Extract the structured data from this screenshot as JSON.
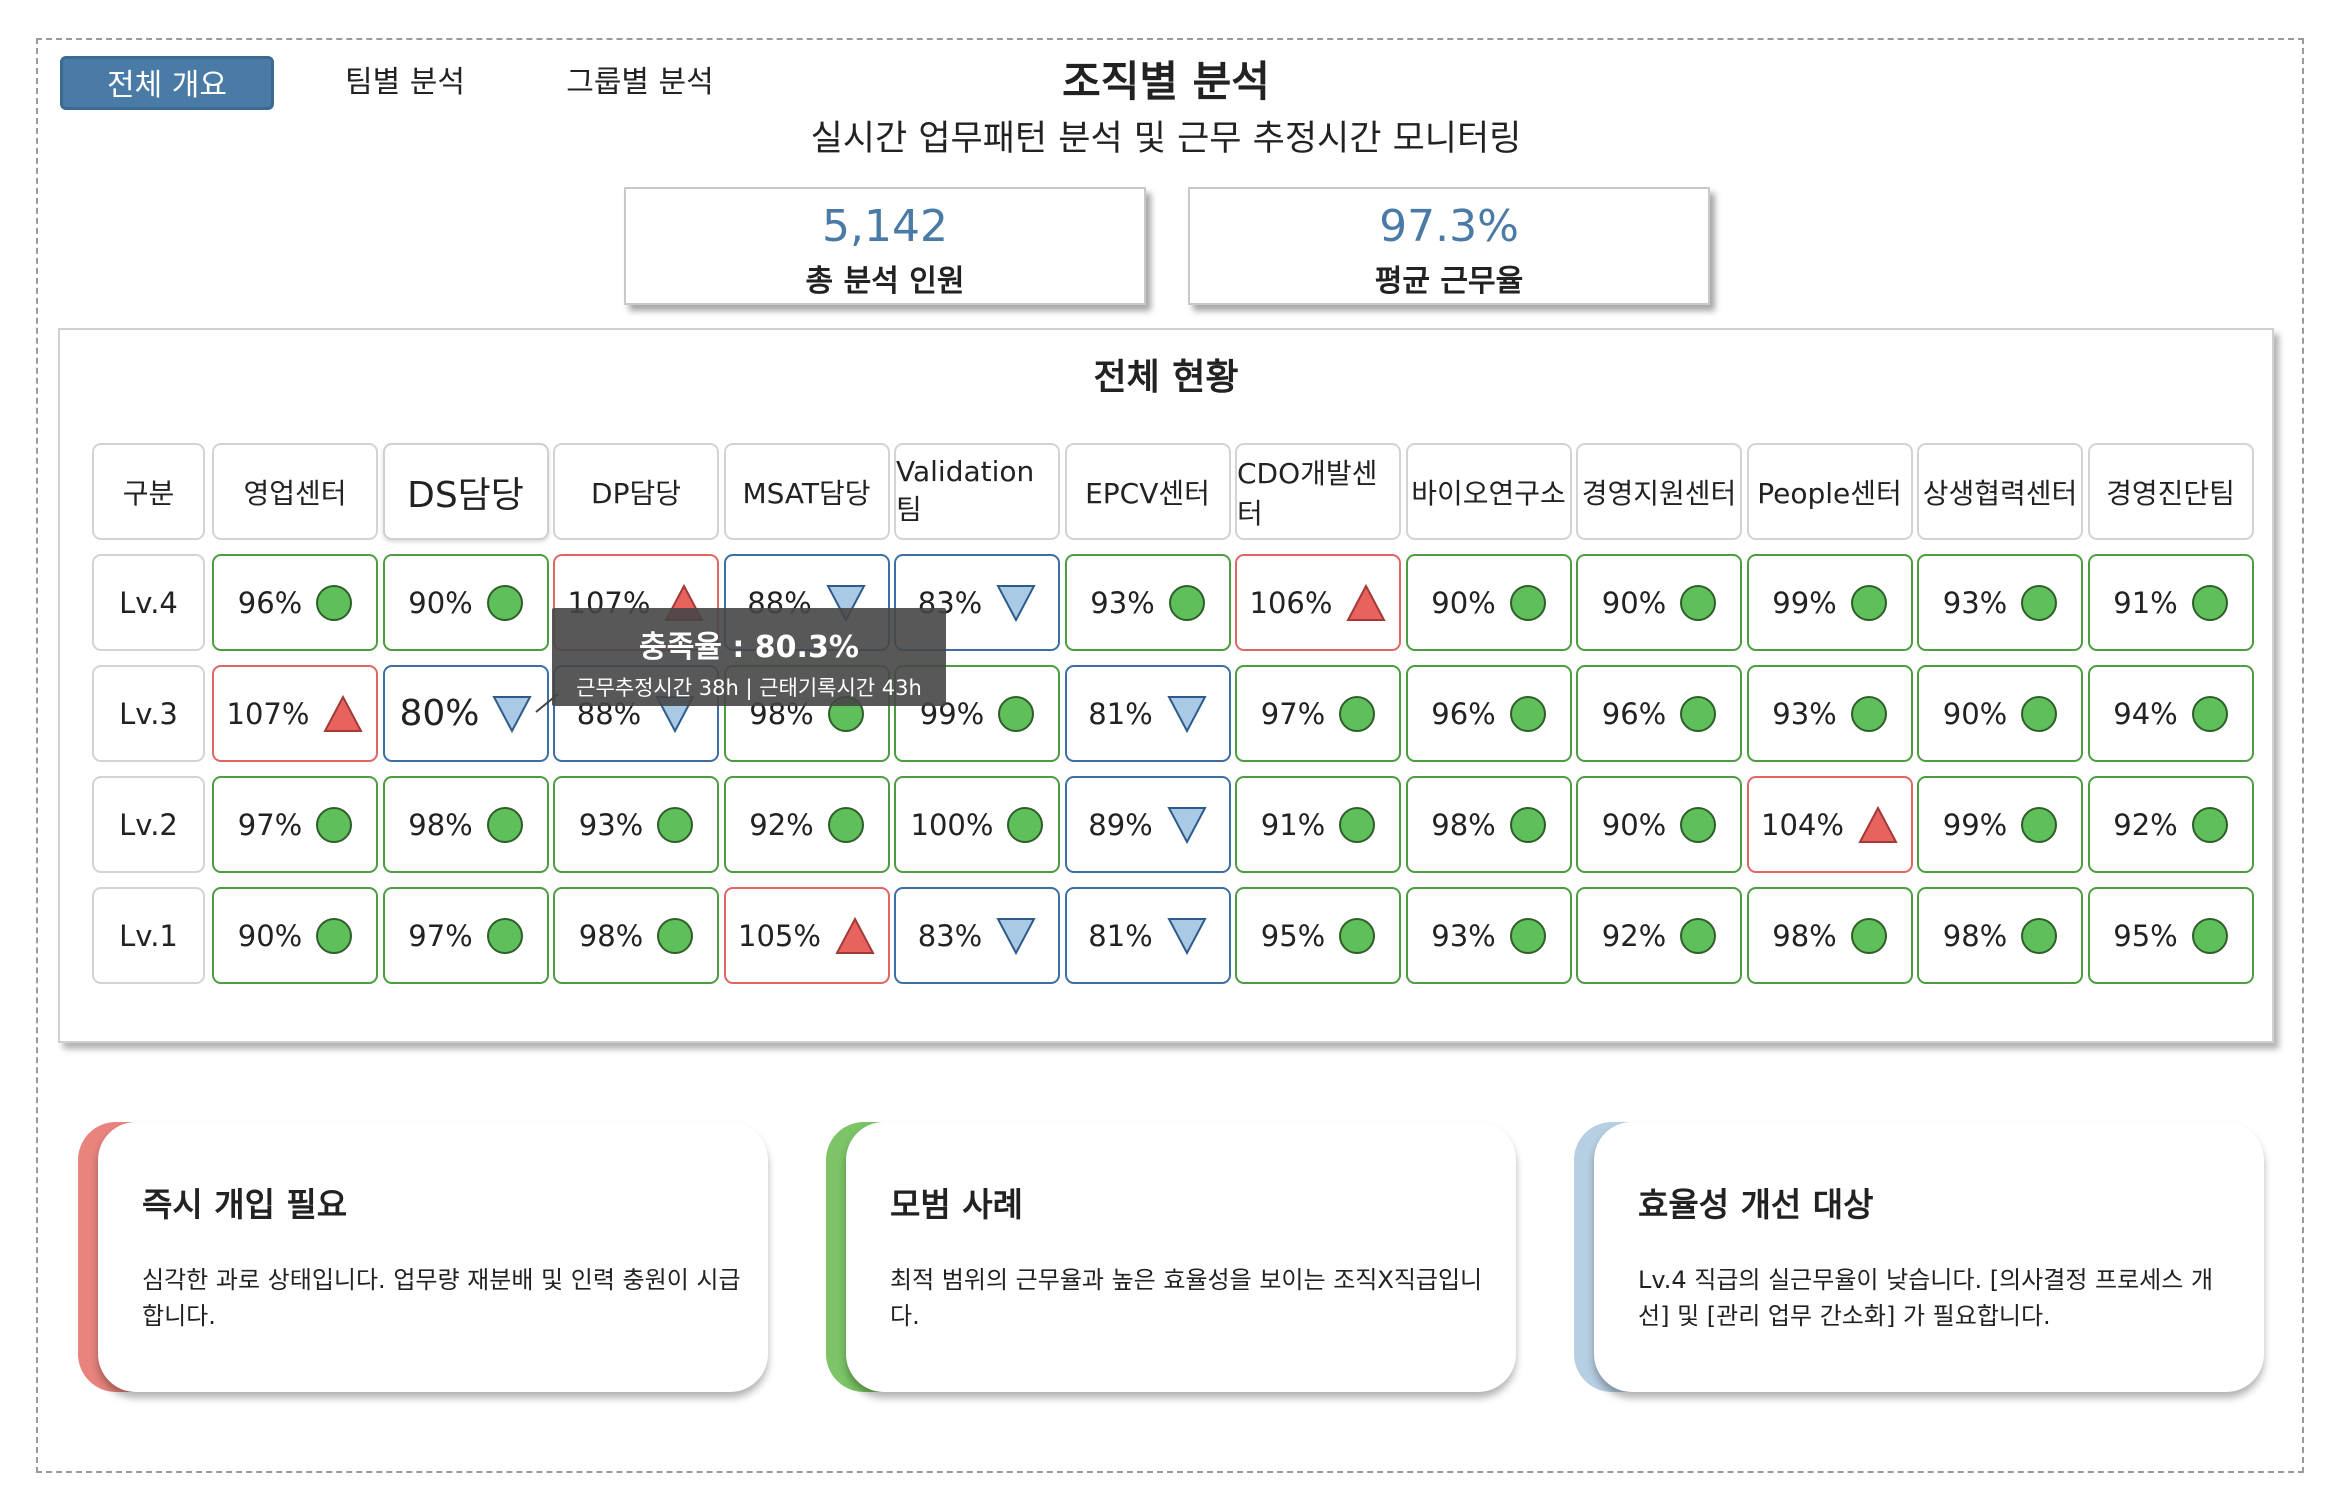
{
  "tabs": [
    {
      "label": "전체 개요",
      "active": true
    },
    {
      "label": "팀별 분석",
      "active": false
    },
    {
      "label": "그룹별 분석",
      "active": false
    }
  ],
  "header": {
    "title": "조직별 분석",
    "subtitle": "실시간 업무패턴 분석 및 근무 추정시간 모니터링"
  },
  "kpis": [
    {
      "value": "5,142",
      "label": "총 분석 인원"
    },
    {
      "value": "97.3%",
      "label": "평균 근무율"
    }
  ],
  "overview": {
    "title": "전체 현황",
    "corner": "구분",
    "columns": [
      "영업센터",
      "DS담당",
      "DP담당",
      "MSAT담당",
      "Validation팀",
      "EPCV센터",
      "CDO개발센터",
      "바이오연구소",
      "경영지원센터",
      "People센터",
      "상생협력센터",
      "경영진단팀"
    ],
    "selected_column": "DS담당",
    "rows": [
      {
        "level": "Lv.4",
        "cells": [
          {
            "v": "96%",
            "s": "ok"
          },
          {
            "v": "90%",
            "s": "ok"
          },
          {
            "v": "107%",
            "s": "over"
          },
          {
            "v": "88%",
            "s": "under"
          },
          {
            "v": "83%",
            "s": "under"
          },
          {
            "v": "93%",
            "s": "ok"
          },
          {
            "v": "106%",
            "s": "over"
          },
          {
            "v": "90%",
            "s": "ok"
          },
          {
            "v": "90%",
            "s": "ok"
          },
          {
            "v": "99%",
            "s": "ok"
          },
          {
            "v": "93%",
            "s": "ok"
          },
          {
            "v": "91%",
            "s": "ok"
          }
        ]
      },
      {
        "level": "Lv.3",
        "cells": [
          {
            "v": "107%",
            "s": "over"
          },
          {
            "v": "80%",
            "s": "under",
            "focus": true
          },
          {
            "v": "88%",
            "s": "under"
          },
          {
            "v": "98%",
            "s": "ok"
          },
          {
            "v": "99%",
            "s": "ok"
          },
          {
            "v": "81%",
            "s": "under"
          },
          {
            "v": "97%",
            "s": "ok"
          },
          {
            "v": "96%",
            "s": "ok"
          },
          {
            "v": "96%",
            "s": "ok"
          },
          {
            "v": "93%",
            "s": "ok"
          },
          {
            "v": "90%",
            "s": "ok"
          },
          {
            "v": "94%",
            "s": "ok"
          }
        ]
      },
      {
        "level": "Lv.2",
        "cells": [
          {
            "v": "97%",
            "s": "ok"
          },
          {
            "v": "98%",
            "s": "ok"
          },
          {
            "v": "93%",
            "s": "ok"
          },
          {
            "v": "92%",
            "s": "ok"
          },
          {
            "v": "100%",
            "s": "ok"
          },
          {
            "v": "89%",
            "s": "under"
          },
          {
            "v": "91%",
            "s": "ok"
          },
          {
            "v": "98%",
            "s": "ok"
          },
          {
            "v": "90%",
            "s": "ok"
          },
          {
            "v": "104%",
            "s": "over"
          },
          {
            "v": "99%",
            "s": "ok"
          },
          {
            "v": "92%",
            "s": "ok"
          }
        ]
      },
      {
        "level": "Lv.1",
        "cells": [
          {
            "v": "90%",
            "s": "ok"
          },
          {
            "v": "97%",
            "s": "ok"
          },
          {
            "v": "98%",
            "s": "ok"
          },
          {
            "v": "105%",
            "s": "over"
          },
          {
            "v": "83%",
            "s": "under"
          },
          {
            "v": "81%",
            "s": "under"
          },
          {
            "v": "95%",
            "s": "ok"
          },
          {
            "v": "93%",
            "s": "ok"
          },
          {
            "v": "92%",
            "s": "ok"
          },
          {
            "v": "98%",
            "s": "ok"
          },
          {
            "v": "98%",
            "s": "ok"
          },
          {
            "v": "95%",
            "s": "ok"
          }
        ]
      }
    ],
    "tooltip": {
      "line1": "충족율 : 80.3%",
      "line2": "근무추정시간 38h  | 근태기록시간 43h"
    }
  },
  "cards": [
    {
      "title": "즉시 개입 필요",
      "body": "심각한 과로 상태입니다. 업무량 재분배 및 인력 충원이 시급합니다.",
      "accent": "#e8837d"
    },
    {
      "title": "모범 사례",
      "body": "최적 범위의 근무율과 높은 효율성을 보이는 조직X직급입니다.",
      "accent": "#7cc467"
    },
    {
      "title": "효율성 개선 대상",
      "body": "Lv.4 직급의 실근무율이 낮습니다. [의사결정 프로세스 개선] 및 [관리 업무 간소화] 가 필요합니다.",
      "accent": "#b7cfe3"
    }
  ],
  "colors": {
    "ok": "#5fbf5a",
    "over": "#e8625e",
    "under": "#a9c9e4",
    "accent": "#4a7aa6"
  }
}
